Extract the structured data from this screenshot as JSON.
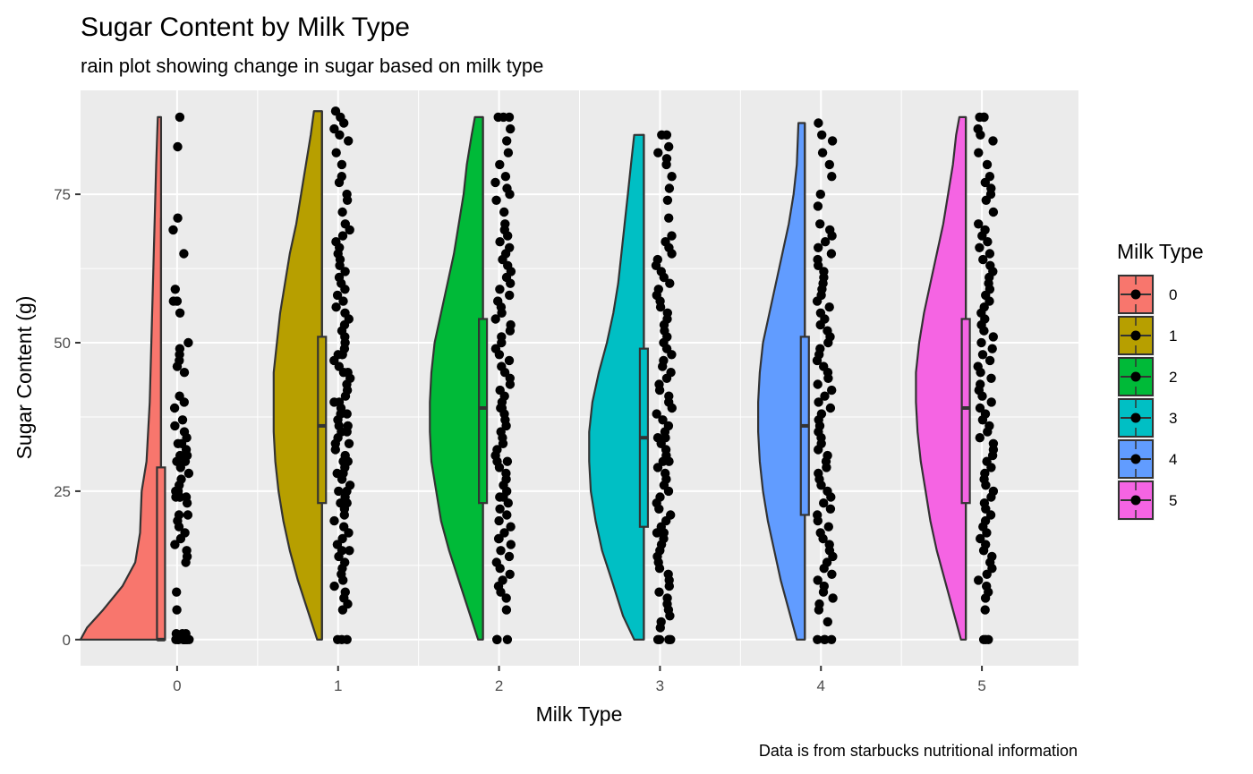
{
  "chart_data": {
    "type": "violin",
    "title": "Sugar Content by Milk Type",
    "subtitle": "rain plot showing change in sugar based on milk type",
    "xlabel": "Milk Type",
    "ylabel": "Sugar Content (g)",
    "caption": "Data is from starbucks nutritional information",
    "categories": [
      "0",
      "1",
      "2",
      "3",
      "4",
      "5"
    ],
    "x_tick_labels": [
      "0",
      "1",
      "2",
      "3",
      "4",
      "5"
    ],
    "y_ticks": [
      0,
      25,
      50,
      75
    ],
    "y_tick_labels": [
      "0",
      "25",
      "50",
      "75"
    ],
    "ylim": [
      -4.4,
      92.5
    ],
    "grid": true,
    "legend": {
      "title": "Milk Type",
      "position": "right",
      "entries": [
        "0",
        "1",
        "2",
        "3",
        "4",
        "5"
      ]
    },
    "colors": [
      "#F8766D",
      "#B79F00",
      "#00BA38",
      "#00BFC4",
      "#619CFF",
      "#F564E3"
    ],
    "boxplots": [
      {
        "name": "0",
        "min": 0,
        "q1": 0,
        "median": 0,
        "q3": 29,
        "max": 71
      },
      {
        "name": "1",
        "min": 0,
        "q1": 23,
        "median": 36,
        "q3": 51,
        "max": 89
      },
      {
        "name": "2",
        "min": 0,
        "q1": 23,
        "median": 39,
        "q3": 54,
        "max": 88
      },
      {
        "name": "3",
        "min": 0,
        "q1": 19,
        "median": 34,
        "q3": 49,
        "max": 85
      },
      {
        "name": "4",
        "min": 0,
        "q1": 21,
        "median": 36,
        "q3": 51,
        "max": 87
      },
      {
        "name": "5",
        "min": 0,
        "q1": 23,
        "median": 39,
        "q3": 54,
        "max": 88
      }
    ],
    "violins": [
      {
        "name": "0",
        "ymin": 0,
        "ymax": 88,
        "widths": [
          [
            0,
            0.5
          ],
          [
            2,
            0.46
          ],
          [
            5,
            0.36
          ],
          [
            9,
            0.24
          ],
          [
            13,
            0.16
          ],
          [
            18,
            0.13
          ],
          [
            25,
            0.12
          ],
          [
            30,
            0.09
          ],
          [
            40,
            0.07
          ],
          [
            50,
            0.06
          ],
          [
            60,
            0.05
          ],
          [
            70,
            0.04
          ],
          [
            80,
            0.03
          ],
          [
            88,
            0.02
          ]
        ]
      },
      {
        "name": "1",
        "ymin": 0,
        "ymax": 89,
        "widths": [
          [
            0,
            0.03
          ],
          [
            5,
            0.09
          ],
          [
            10,
            0.15
          ],
          [
            15,
            0.2
          ],
          [
            20,
            0.24
          ],
          [
            25,
            0.27
          ],
          [
            30,
            0.29
          ],
          [
            35,
            0.3
          ],
          [
            40,
            0.3
          ],
          [
            45,
            0.3
          ],
          [
            50,
            0.28
          ],
          [
            55,
            0.26
          ],
          [
            60,
            0.23
          ],
          [
            65,
            0.2
          ],
          [
            70,
            0.16
          ],
          [
            75,
            0.13
          ],
          [
            80,
            0.1
          ],
          [
            85,
            0.07
          ],
          [
            89,
            0.05
          ]
        ]
      },
      {
        "name": "2",
        "ymin": 0,
        "ymax": 88,
        "widths": [
          [
            0,
            0.03
          ],
          [
            5,
            0.09
          ],
          [
            10,
            0.15
          ],
          [
            15,
            0.21
          ],
          [
            20,
            0.26
          ],
          [
            25,
            0.29
          ],
          [
            30,
            0.32
          ],
          [
            35,
            0.33
          ],
          [
            40,
            0.33
          ],
          [
            45,
            0.32
          ],
          [
            50,
            0.3
          ],
          [
            55,
            0.26
          ],
          [
            60,
            0.22
          ],
          [
            65,
            0.18
          ],
          [
            70,
            0.15
          ],
          [
            75,
            0.12
          ],
          [
            80,
            0.1
          ],
          [
            85,
            0.07
          ],
          [
            88,
            0.05
          ]
        ]
      },
      {
        "name": "3",
        "ymin": 0,
        "ymax": 85,
        "widths": [
          [
            0,
            0.06
          ],
          [
            4,
            0.13
          ],
          [
            10,
            0.2
          ],
          [
            15,
            0.26
          ],
          [
            20,
            0.3
          ],
          [
            25,
            0.33
          ],
          [
            30,
            0.34
          ],
          [
            35,
            0.34
          ],
          [
            40,
            0.32
          ],
          [
            45,
            0.28
          ],
          [
            50,
            0.23
          ],
          [
            55,
            0.19
          ],
          [
            60,
            0.16
          ],
          [
            65,
            0.14
          ],
          [
            70,
            0.12
          ],
          [
            75,
            0.1
          ],
          [
            80,
            0.08
          ],
          [
            85,
            0.06
          ]
        ]
      },
      {
        "name": "4",
        "ymin": 0,
        "ymax": 87,
        "widths": [
          [
            0,
            0.05
          ],
          [
            5,
            0.1
          ],
          [
            10,
            0.15
          ],
          [
            15,
            0.19
          ],
          [
            20,
            0.23
          ],
          [
            25,
            0.26
          ],
          [
            30,
            0.28
          ],
          [
            35,
            0.29
          ],
          [
            40,
            0.29
          ],
          [
            45,
            0.28
          ],
          [
            50,
            0.26
          ],
          [
            55,
            0.22
          ],
          [
            60,
            0.18
          ],
          [
            65,
            0.14
          ],
          [
            70,
            0.1
          ],
          [
            75,
            0.07
          ],
          [
            80,
            0.05
          ],
          [
            87,
            0.04
          ]
        ]
      },
      {
        "name": "5",
        "ymin": 0,
        "ymax": 88,
        "widths": [
          [
            0,
            0.03
          ],
          [
            5,
            0.08
          ],
          [
            10,
            0.13
          ],
          [
            15,
            0.18
          ],
          [
            20,
            0.22
          ],
          [
            25,
            0.25
          ],
          [
            30,
            0.28
          ],
          [
            35,
            0.3
          ],
          [
            40,
            0.31
          ],
          [
            45,
            0.31
          ],
          [
            50,
            0.29
          ],
          [
            55,
            0.26
          ],
          [
            60,
            0.22
          ],
          [
            65,
            0.18
          ],
          [
            70,
            0.14
          ],
          [
            75,
            0.11
          ],
          [
            80,
            0.08
          ],
          [
            85,
            0.06
          ],
          [
            88,
            0.04
          ]
        ]
      }
    ],
    "points": [
      {
        "name": "0",
        "y": [
          0,
          0,
          0,
          0,
          0,
          0,
          0,
          0,
          0,
          0,
          0,
          0,
          1,
          1,
          1,
          5,
          8,
          13,
          14,
          15,
          16,
          17,
          18,
          19,
          20,
          21,
          21,
          23,
          24,
          24,
          24,
          24,
          25,
          25,
          26,
          27,
          28,
          29,
          30,
          30,
          31,
          31,
          32,
          33,
          33,
          34,
          35,
          36,
          37,
          39,
          40,
          41,
          45,
          46,
          47,
          48,
          49,
          50,
          55,
          57,
          57,
          59,
          65,
          69,
          71,
          83,
          88
        ]
      },
      {
        "name": "1",
        "y": [
          0,
          0,
          0,
          5,
          6,
          7,
          8,
          9,
          10,
          11,
          12,
          13,
          14,
          15,
          15,
          16,
          17,
          18,
          19,
          20,
          21,
          22,
          23,
          23,
          24,
          25,
          25,
          26,
          27,
          28,
          28,
          29,
          30,
          30,
          31,
          32,
          33,
          33,
          34,
          35,
          35,
          36,
          36,
          37,
          38,
          38,
          39,
          40,
          40,
          41,
          42,
          43,
          44,
          45,
          45,
          46,
          47,
          48,
          48,
          49,
          50,
          51,
          52,
          53,
          54,
          55,
          56,
          57,
          58,
          59,
          60,
          61,
          62,
          63,
          64,
          65,
          66,
          67,
          68,
          69,
          70,
          72,
          74,
          75,
          77,
          78,
          80,
          82,
          84,
          85,
          86,
          87,
          88,
          89
        ]
      },
      {
        "name": "2",
        "y": [
          0,
          0,
          0,
          0,
          5,
          7,
          8,
          9,
          10,
          11,
          12,
          13,
          14,
          15,
          16,
          17,
          17,
          18,
          19,
          20,
          21,
          22,
          23,
          24,
          24,
          25,
          26,
          27,
          28,
          29,
          30,
          30,
          31,
          32,
          33,
          34,
          35,
          36,
          37,
          38,
          39,
          39,
          40,
          41,
          42,
          43,
          44,
          45,
          46,
          47,
          48,
          49,
          50,
          51,
          52,
          53,
          54,
          55,
          56,
          57,
          58,
          59,
          60,
          61,
          62,
          63,
          64,
          65,
          66,
          67,
          68,
          69,
          70,
          72,
          74,
          75,
          76,
          77,
          78,
          80,
          82,
          84,
          86,
          88,
          88,
          88
        ]
      },
      {
        "name": "3",
        "y": [
          0,
          0,
          0,
          0,
          2,
          3,
          4,
          5,
          6,
          7,
          8,
          9,
          10,
          11,
          12,
          13,
          14,
          15,
          16,
          17,
          18,
          18,
          19,
          20,
          21,
          22,
          23,
          24,
          25,
          26,
          27,
          28,
          29,
          30,
          30,
          31,
          32,
          33,
          34,
          34,
          35,
          36,
          37,
          38,
          39,
          40,
          41,
          42,
          43,
          44,
          45,
          46,
          47,
          48,
          49,
          50,
          51,
          52,
          53,
          54,
          55,
          56,
          57,
          58,
          59,
          60,
          61,
          62,
          63,
          64,
          65,
          66,
          67,
          68,
          71,
          74,
          76,
          78,
          80,
          81,
          82,
          83,
          85,
          85
        ]
      },
      {
        "name": "4",
        "y": [
          0,
          0,
          0,
          0,
          3,
          5,
          6,
          7,
          8,
          9,
          10,
          11,
          12,
          13,
          14,
          15,
          16,
          17,
          18,
          19,
          20,
          21,
          22,
          23,
          24,
          25,
          26,
          27,
          28,
          29,
          30,
          31,
          32,
          33,
          34,
          35,
          36,
          37,
          38,
          39,
          40,
          41,
          42,
          43,
          44,
          45,
          46,
          47,
          48,
          49,
          50,
          51,
          52,
          53,
          54,
          55,
          56,
          57,
          58,
          59,
          60,
          61,
          62,
          63,
          64,
          65,
          66,
          67,
          68,
          69,
          70,
          73,
          75,
          78,
          80,
          82,
          84,
          85,
          87
        ]
      },
      {
        "name": "5",
        "y": [
          0,
          0,
          0,
          5,
          7,
          8,
          9,
          10,
          11,
          12,
          13,
          14,
          15,
          16,
          17,
          18,
          19,
          20,
          21,
          22,
          23,
          24,
          25,
          26,
          27,
          28,
          29,
          30,
          31,
          32,
          33,
          34,
          35,
          36,
          37,
          38,
          39,
          40,
          41,
          42,
          43,
          44,
          45,
          46,
          47,
          48,
          49,
          50,
          51,
          52,
          53,
          54,
          55,
          56,
          57,
          58,
          59,
          60,
          61,
          62,
          63,
          64,
          65,
          66,
          67,
          68,
          69,
          70,
          72,
          74,
          75,
          76,
          77,
          78,
          80,
          82,
          84,
          85,
          86,
          88,
          88,
          88
        ]
      }
    ]
  }
}
